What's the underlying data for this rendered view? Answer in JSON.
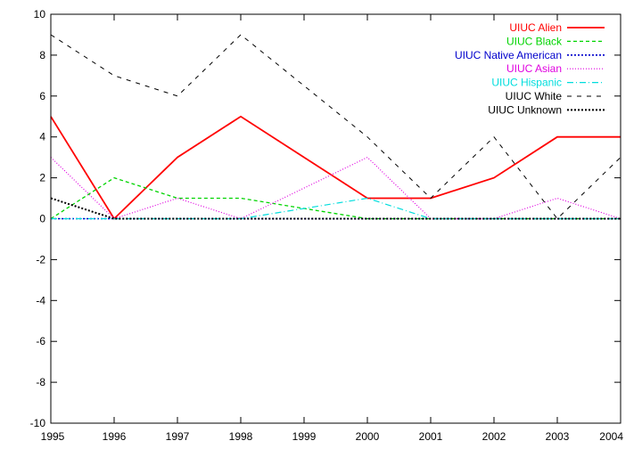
{
  "chart_data": {
    "type": "line",
    "title": "",
    "xlabel": "",
    "ylabel": "",
    "x": [
      1995,
      1996,
      1997,
      1998,
      1999,
      2000,
      2001,
      2002,
      2003,
      2004
    ],
    "xlim": [
      1995,
      2004
    ],
    "ylim": [
      -10,
      10
    ],
    "yticks": [
      -10,
      -8,
      -6,
      -4,
      -2,
      0,
      2,
      4,
      6,
      8,
      10
    ],
    "xticks": [
      1995,
      1996,
      1997,
      1998,
      1999,
      2000,
      2001,
      2002,
      2003,
      2004
    ],
    "grid": false,
    "legend_position": "top-right",
    "series": [
      {
        "name": "UIUC Alien",
        "color": "#ff0000",
        "dash": "solid",
        "values": [
          5,
          0,
          3,
          5,
          3,
          1,
          1,
          2,
          4,
          4
        ]
      },
      {
        "name": "UIUC Black",
        "color": "#00d400",
        "dash": "dashed",
        "values": [
          0,
          2,
          1,
          1,
          0.5,
          0,
          0,
          0,
          0,
          0
        ]
      },
      {
        "name": "UIUC Native American",
        "color": "#0000cc",
        "dash": "dotted",
        "values": [
          0,
          0,
          0,
          0,
          0,
          0,
          0,
          0,
          0,
          0
        ]
      },
      {
        "name": "UIUC Asian",
        "color": "#e000e0",
        "dash": "fine-dotted",
        "values": [
          3,
          0,
          1,
          0,
          1.5,
          3,
          0,
          0,
          1,
          0
        ]
      },
      {
        "name": "UIUC Hispanic",
        "color": "#00dddd",
        "dash": "dash-dot",
        "values": [
          0,
          0,
          0,
          0,
          0.5,
          1,
          0,
          0,
          0,
          0
        ]
      },
      {
        "name": "UIUC White",
        "color": "#000000",
        "dash": "long-dashed",
        "values": [
          9,
          7,
          6,
          9,
          6.5,
          4,
          1,
          4,
          0,
          3
        ]
      },
      {
        "name": "UIUC Unknown",
        "color": "#000000",
        "dash": "dense-dotted",
        "values": [
          1,
          0,
          0,
          0,
          0,
          0,
          0,
          0,
          0,
          0
        ]
      }
    ]
  }
}
